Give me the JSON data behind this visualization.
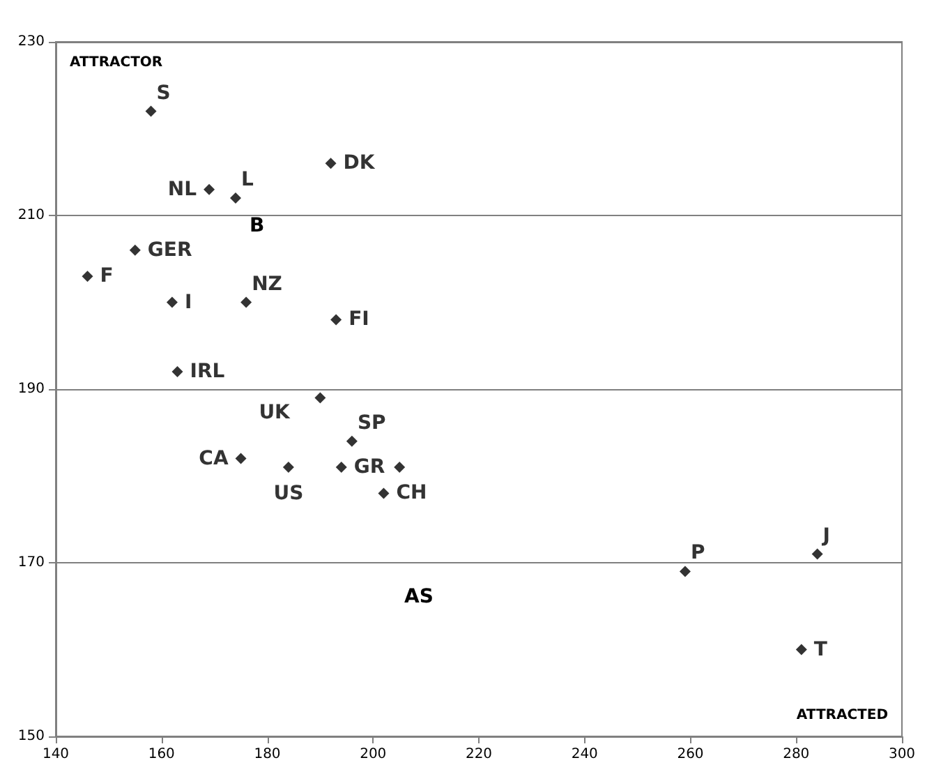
{
  "chart_data": {
    "type": "scatter",
    "x": [
      158,
      192,
      169,
      174,
      155,
      146,
      162,
      176,
      193,
      163,
      190,
      196,
      175,
      184,
      194,
      205,
      202,
      259,
      284,
      281
    ],
    "values": [
      222,
      216,
      213,
      212,
      206,
      203,
      200,
      200,
      198,
      192,
      189,
      184,
      182,
      181,
      181,
      181,
      178,
      169,
      171,
      160
    ],
    "value_labels": [
      "S",
      "DK",
      "NL",
      "L",
      "GER",
      "F",
      "I",
      "NZ",
      "FI",
      "IRL",
      "UK",
      "SP",
      "CA",
      "US",
      "GR",
      null,
      "CH",
      "P",
      "J",
      "T"
    ],
    "color": "#000000",
    "marker": "diamond",
    "annotations": [
      "ATTRACTOR",
      "ATTRACTED",
      "B",
      "AS"
    ],
    "xlim": [
      140,
      300
    ],
    "xticks": [
      140,
      160,
      180,
      200,
      220,
      240,
      260,
      280,
      300
    ],
    "ylim": [
      150,
      230
    ],
    "yticks": [
      150,
      170,
      190,
      210,
      230
    ],
    "grid": "y"
  }
}
